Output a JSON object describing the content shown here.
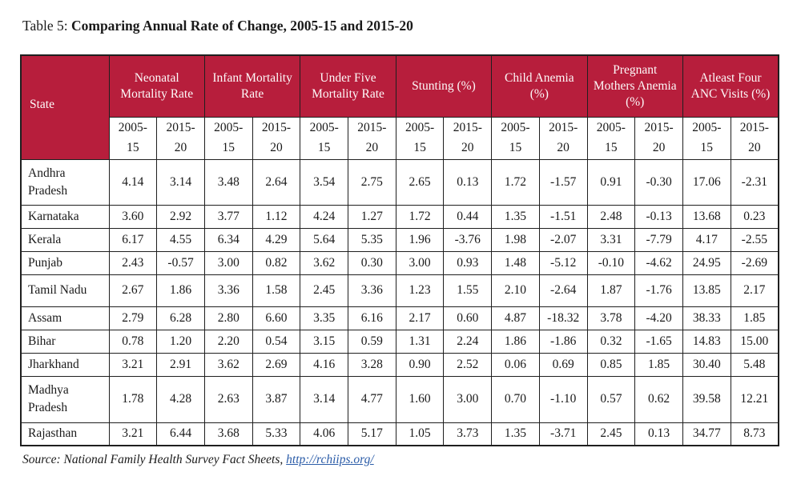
{
  "title": {
    "prefix": "Table 5: ",
    "main": "Comparing Annual Rate of Change, 2005-15 and 2015-20"
  },
  "table": {
    "state_header": "State",
    "groups": [
      "Neonatal Mortality Rate",
      "Infant Mortality Rate",
      "Under Five Mortality Rate",
      "Stunting (%)",
      "Child Anemia (%)",
      "Pregnant Mothers Anemia (%)",
      "Atleast Four ANC Visits (%)"
    ],
    "period_first": [
      "2005-",
      "15"
    ],
    "period_second": [
      "2015-",
      "20"
    ],
    "rows": [
      {
        "state": "Andhra Pradesh",
        "values": [
          "4.14",
          "3.14",
          "3.48",
          "2.64",
          "3.54",
          "2.75",
          "2.65",
          "0.13",
          "1.72",
          "-1.57",
          "0.91",
          "-0.30",
          "17.06",
          "-2.31"
        ]
      },
      {
        "state": "Karnataka",
        "values": [
          "3.60",
          "2.92",
          "3.77",
          "1.12",
          "4.24",
          "1.27",
          "1.72",
          "0.44",
          "1.35",
          "-1.51",
          "2.48",
          "-0.13",
          "13.68",
          "0.23"
        ]
      },
      {
        "state": "Kerala",
        "values": [
          "6.17",
          "4.55",
          "6.34",
          "4.29",
          "5.64",
          "5.35",
          "1.96",
          "-3.76",
          "1.98",
          "-2.07",
          "3.31",
          "-7.79",
          "4.17",
          "-2.55"
        ]
      },
      {
        "state": "Punjab",
        "values": [
          "2.43",
          "-0.57",
          "3.00",
          "0.82",
          "3.62",
          "0.30",
          "3.00",
          "0.93",
          "1.48",
          "-5.12",
          "-0.10",
          "-4.62",
          "24.95",
          "-2.69"
        ]
      },
      {
        "state": "Tamil Nadu",
        "values": [
          "2.67",
          "1.86",
          "3.36",
          "1.58",
          "2.45",
          "3.36",
          "1.23",
          "1.55",
          "2.10",
          "-2.64",
          "1.87",
          "-1.76",
          "13.85",
          "2.17"
        ]
      },
      {
        "state": "Assam",
        "values": [
          "2.79",
          "6.28",
          "2.80",
          "6.60",
          "3.35",
          "6.16",
          "2.17",
          "0.60",
          "4.87",
          "-18.32",
          "3.78",
          "-4.20",
          "38.33",
          "1.85"
        ]
      },
      {
        "state": "Bihar",
        "values": [
          "0.78",
          "1.20",
          "2.20",
          "0.54",
          "3.15",
          "0.59",
          "1.31",
          "2.24",
          "1.86",
          "-1.86",
          "0.32",
          "-1.65",
          "14.83",
          "15.00"
        ]
      },
      {
        "state": "Jharkhand",
        "values": [
          "3.21",
          "2.91",
          "3.62",
          "2.69",
          "4.16",
          "3.28",
          "0.90",
          "2.52",
          "0.06",
          "0.69",
          "0.85",
          "1.85",
          "30.40",
          "5.48"
        ]
      },
      {
        "state": "Madhya Pradesh",
        "values": [
          "1.78",
          "4.28",
          "2.63",
          "3.87",
          "3.14",
          "4.77",
          "1.60",
          "3.00",
          "0.70",
          "-1.10",
          "0.57",
          "0.62",
          "39.58",
          "12.21"
        ]
      },
      {
        "state": "Rajasthan",
        "values": [
          "3.21",
          "6.44",
          "3.68",
          "5.33",
          "4.06",
          "5.17",
          "1.05",
          "3.73",
          "1.35",
          "-3.71",
          "2.45",
          "0.13",
          "34.77",
          "8.73"
        ]
      }
    ]
  },
  "source": {
    "prefix": "Source: National Family Health Survey Fact Sheets, ",
    "link": "http://rchiips.org/"
  },
  "colors": {
    "header_bg": "#b71e3c",
    "link_color": "#2b5ca8",
    "border": "#1f1f1f"
  }
}
